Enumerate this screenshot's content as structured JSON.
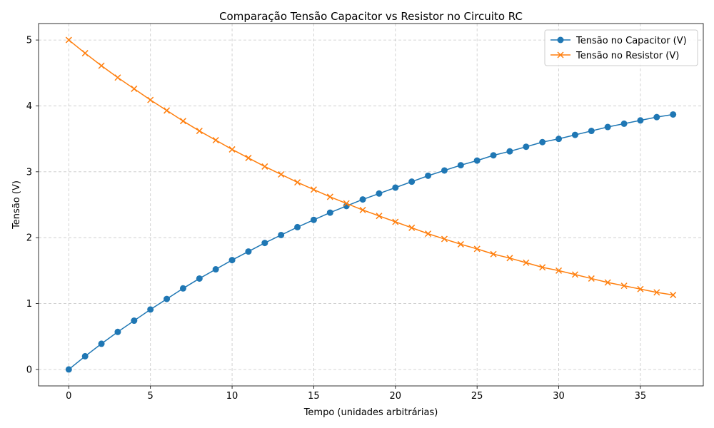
{
  "chart_data": {
    "type": "line",
    "title": "Comparação Tensão Capacitor vs Resistor no Circuito RC",
    "xlabel": "Tempo (unidades arbitrárias)",
    "ylabel": "Tensão (V)",
    "xlim": [
      -1.85,
      38.85
    ],
    "ylim": [
      -0.25,
      5.25
    ],
    "xticks": [
      0,
      5,
      10,
      15,
      20,
      25,
      30,
      35
    ],
    "yticks": [
      0,
      1,
      2,
      3,
      4,
      5
    ],
    "grid": true,
    "legend_position": "top-right",
    "x": [
      0,
      1,
      2,
      3,
      4,
      5,
      6,
      7,
      8,
      9,
      10,
      11,
      12,
      13,
      14,
      15,
      16,
      17,
      18,
      19,
      20,
      21,
      22,
      23,
      24,
      25,
      26,
      27,
      28,
      29,
      30,
      31,
      32,
      33,
      34,
      35,
      36,
      37
    ],
    "series": [
      {
        "name": "Tensão no Capacitor (V)",
        "color": "#1f77b4",
        "marker": "circle",
        "values": [
          0.0,
          0.2,
          0.39,
          0.57,
          0.74,
          0.91,
          1.07,
          1.23,
          1.38,
          1.52,
          1.66,
          1.79,
          1.92,
          2.04,
          2.16,
          2.27,
          2.38,
          2.48,
          2.58,
          2.67,
          2.76,
          2.85,
          2.94,
          3.02,
          3.1,
          3.17,
          3.25,
          3.31,
          3.38,
          3.45,
          3.5,
          3.56,
          3.62,
          3.68,
          3.73,
          3.78,
          3.83,
          3.87
        ]
      },
      {
        "name": "Tensão no Resistor (V)",
        "color": "#ff7f0e",
        "marker": "x",
        "values": [
          5.0,
          4.8,
          4.61,
          4.43,
          4.26,
          4.09,
          3.93,
          3.77,
          3.62,
          3.48,
          3.34,
          3.21,
          3.08,
          2.96,
          2.84,
          2.73,
          2.62,
          2.52,
          2.42,
          2.33,
          2.24,
          2.15,
          2.06,
          1.98,
          1.9,
          1.83,
          1.75,
          1.69,
          1.62,
          1.55,
          1.5,
          1.44,
          1.38,
          1.32,
          1.27,
          1.22,
          1.17,
          1.13
        ]
      }
    ]
  }
}
